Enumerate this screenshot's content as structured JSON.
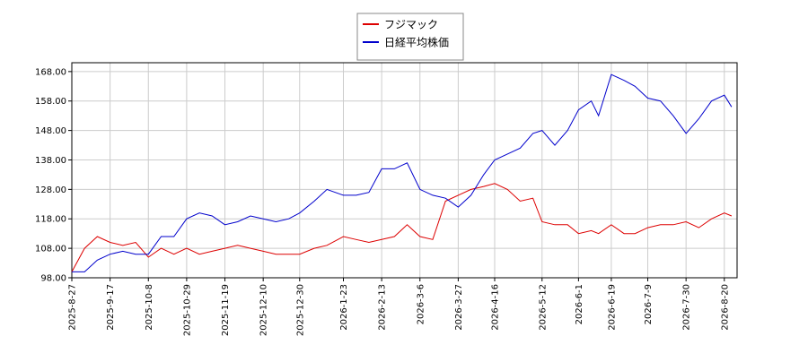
{
  "chart_data": {
    "type": "line",
    "x": [
      "2025-08-27",
      "2025-09-03",
      "2025-09-10",
      "2025-09-17",
      "2025-09-24",
      "2025-10-01",
      "2025-10-08",
      "2025-10-15",
      "2025-10-22",
      "2025-10-29",
      "2025-11-05",
      "2025-11-12",
      "2025-11-19",
      "2025-11-26",
      "2025-12-03",
      "2025-12-10",
      "2025-12-17",
      "2025-12-24",
      "2025-12-30",
      "2026-01-07",
      "2026-01-14",
      "2026-01-23",
      "2026-01-30",
      "2026-02-06",
      "2026-02-13",
      "2026-02-20",
      "2026-02-27",
      "2026-03-06",
      "2026-03-13",
      "2026-03-20",
      "2026-03-27",
      "2026-04-03",
      "2026-04-10",
      "2026-04-16",
      "2026-04-23",
      "2026-04-30",
      "2026-05-07",
      "2026-05-12",
      "2026-05-19",
      "2026-05-26",
      "2026-06-01",
      "2026-06-08",
      "2026-06-12",
      "2026-06-19",
      "2026-06-26",
      "2026-07-02",
      "2026-07-09",
      "2026-07-16",
      "2026-07-23",
      "2026-07-30",
      "2026-08-06",
      "2026-08-13",
      "2026-08-20",
      "2026-08-24"
    ],
    "series": [
      {
        "name": "フジマック",
        "color": "#dd0000",
        "values": [
          100,
          108,
          112,
          110,
          109,
          110,
          105,
          108,
          106,
          108,
          106,
          107,
          108,
          109,
          108,
          107,
          106,
          106,
          106,
          108,
          109,
          112,
          111,
          110,
          111,
          112,
          116,
          112,
          111,
          124,
          126,
          128,
          129,
          130,
          128,
          124,
          125,
          117,
          116,
          116,
          113,
          114,
          113,
          116,
          113,
          113,
          115,
          116,
          116,
          117,
          115,
          118,
          120,
          119
        ]
      },
      {
        "name": "日経平均株価",
        "color": "#0000cc",
        "values": [
          100,
          100,
          104,
          106,
          107,
          106,
          106,
          112,
          112,
          118,
          120,
          119,
          116,
          117,
          119,
          118,
          117,
          118,
          120,
          124,
          128,
          126,
          126,
          127,
          135,
          135,
          137,
          128,
          126,
          125,
          122,
          126,
          133,
          138,
          140,
          142,
          147,
          148,
          143,
          148,
          155,
          158,
          153,
          167,
          165,
          163,
          159,
          158,
          153,
          147,
          152,
          158,
          160,
          156
        ]
      }
    ],
    "xlim": [
      "2025-08-27",
      "2026-08-27"
    ],
    "xticks": [
      "2025-8-27",
      "2025-9-17",
      "2025-10-8",
      "2025-10-29",
      "2025-11-19",
      "2025-12-10",
      "2025-12-30",
      "2026-1-23",
      "2026-2-13",
      "2026-3-6",
      "2026-3-27",
      "2026-4-16",
      "2026-5-12",
      "2026-6-1",
      "2026-6-19",
      "2026-7-9",
      "2026-7-30",
      "2026-8-20"
    ],
    "ylim": [
      98,
      171
    ],
    "yticks": [
      {
        "value": 98,
        "label": "98.00"
      },
      {
        "value": 108,
        "label": "108.00"
      },
      {
        "value": 118,
        "label": "118.00"
      },
      {
        "value": 128,
        "label": "128.00"
      },
      {
        "value": 138,
        "label": "138.00"
      },
      {
        "value": 148,
        "label": "148.00"
      },
      {
        "value": 158,
        "label": "158.00"
      },
      {
        "value": 168,
        "label": "168.00"
      }
    ],
    "grid": true,
    "legend": "upper center"
  }
}
